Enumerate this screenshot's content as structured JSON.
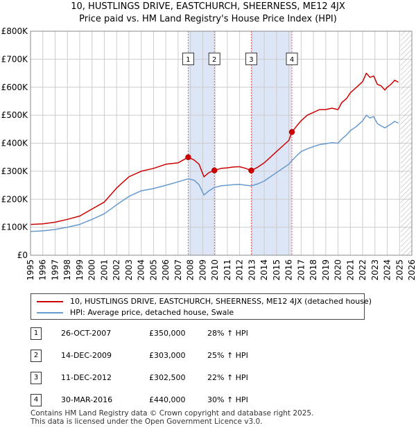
{
  "title": {
    "line1": "10, HUSTLINGS DRIVE, EASTCHURCH, SHEERNESS, ME12 4JX",
    "line2": "Price paid vs. HM Land Registry's House Price Index (HPI)"
  },
  "legend": {
    "property_label": "10, HUSTLINGS DRIVE, EASTCHURCH, SHEERNESS, ME12 4JX (detached house)",
    "hpi_label": "HPI: Average price, detached house, Swale"
  },
  "colors": {
    "property": "#cc0000",
    "hpi": "#6699cc",
    "shade": "#dde6f7",
    "grid": "#cccccc",
    "marker_line": "#e06060"
  },
  "sales": [
    {
      "num": "1",
      "date": "26-OCT-2007",
      "price": "£350,000",
      "hpi": "28% ↑ HPI"
    },
    {
      "num": "2",
      "date": "14-DEC-2009",
      "price": "£303,000",
      "hpi": "25% ↑ HPI"
    },
    {
      "num": "3",
      "date": "11-DEC-2012",
      "price": "£302,500",
      "hpi": "22% ↑ HPI"
    },
    {
      "num": "4",
      "date": "30-MAR-2016",
      "price": "£440,000",
      "hpi": "30% ↑ HPI"
    }
  ],
  "footer": {
    "line1": "Contains HM Land Registry data © Crown copyright and database right 2025.",
    "line2": "This data is licensed under the Open Government Licence v3.0."
  },
  "chart_data": {
    "type": "line",
    "title": "Price paid vs. HM Land Registry's House Price Index (HPI)",
    "xlabel": "",
    "ylabel": "",
    "xlim": [
      1995,
      2026
    ],
    "ylim": [
      0,
      800000
    ],
    "x_ticks": [
      "1995",
      "1996",
      "1997",
      "1998",
      "1999",
      "2000",
      "2001",
      "2002",
      "2003",
      "2004",
      "2005",
      "2006",
      "2007",
      "2008",
      "2009",
      "2010",
      "2011",
      "2012",
      "2013",
      "2014",
      "2015",
      "2016",
      "2017",
      "2018",
      "2019",
      "2020",
      "2021",
      "2022",
      "2023",
      "2024",
      "2025",
      "2026"
    ],
    "y_ticks": [
      {
        "value": 0,
        "label": "£0"
      },
      {
        "value": 100000,
        "label": "£100K"
      },
      {
        "value": 200000,
        "label": "£200K"
      },
      {
        "value": 300000,
        "label": "£300K"
      },
      {
        "value": 400000,
        "label": "£400K"
      },
      {
        "value": 500000,
        "label": "£500K"
      },
      {
        "value": 600000,
        "label": "£600K"
      },
      {
        "value": 700000,
        "label": "£700K"
      },
      {
        "value": 800000,
        "label": "£800K"
      }
    ],
    "shaded_periods": [
      [
        2007.82,
        2009.95
      ],
      [
        2012.95,
        2016.25
      ]
    ],
    "hatched_from": 2025.1,
    "sale_markers": [
      {
        "label": "1",
        "x": 2007.82,
        "y": 350000
      },
      {
        "label": "2",
        "x": 2009.95,
        "y": 303000
      },
      {
        "label": "3",
        "x": 2012.95,
        "y": 302500
      },
      {
        "label": "4",
        "x": 2016.25,
        "y": 440000
      }
    ],
    "series": [
      {
        "name": "10, HUSTLINGS DRIVE, EASTCHURCH, SHEERNESS, ME12 4JX (detached house)",
        "color": "#cc0000",
        "x": [
          1995.0,
          1996.0,
          1997.0,
          1998.0,
          1999.0,
          2000.0,
          2001.0,
          2002.0,
          2003.0,
          2004.0,
          2005.0,
          2006.0,
          2007.0,
          2007.82,
          2008.3,
          2008.7,
          2009.1,
          2009.5,
          2009.95,
          2010.5,
          2011.0,
          2011.5,
          2012.0,
          2012.5,
          2012.95,
          2013.5,
          2014.0,
          2014.5,
          2015.0,
          2015.5,
          2016.0,
          2016.25,
          2016.7,
          2017.0,
          2017.5,
          2018.0,
          2018.5,
          2019.0,
          2019.5,
          2020.0,
          2020.3,
          2020.7,
          2021.0,
          2021.5,
          2022.0,
          2022.3,
          2022.6,
          2022.9,
          2023.2,
          2023.5,
          2023.8,
          2024.0,
          2024.3,
          2024.6,
          2024.9
        ],
        "y": [
          110000,
          112000,
          118000,
          128000,
          140000,
          165000,
          190000,
          240000,
          280000,
          300000,
          310000,
          325000,
          330000,
          350000,
          340000,
          325000,
          280000,
          295000,
          303000,
          310000,
          312000,
          315000,
          316000,
          310000,
          302500,
          315000,
          330000,
          350000,
          370000,
          390000,
          410000,
          440000,
          465000,
          480000,
          500000,
          510000,
          520000,
          520000,
          525000,
          520000,
          545000,
          560000,
          580000,
          600000,
          620000,
          650000,
          635000,
          640000,
          610000,
          605000,
          590000,
          600000,
          610000,
          625000,
          618000
        ]
      },
      {
        "name": "HPI: Average price, detached house, Swale",
        "color": "#6699cc",
        "x": [
          1995.0,
          1996.0,
          1997.0,
          1998.0,
          1999.0,
          2000.0,
          2001.0,
          2002.0,
          2003.0,
          2004.0,
          2005.0,
          2006.0,
          2007.0,
          2007.82,
          2008.3,
          2008.7,
          2009.1,
          2009.5,
          2009.95,
          2010.5,
          2011.0,
          2011.5,
          2012.0,
          2012.5,
          2012.95,
          2013.5,
          2014.0,
          2014.5,
          2015.0,
          2015.5,
          2016.0,
          2016.25,
          2016.7,
          2017.0,
          2017.5,
          2018.0,
          2018.5,
          2019.0,
          2019.5,
          2020.0,
          2020.3,
          2020.7,
          2021.0,
          2021.5,
          2022.0,
          2022.3,
          2022.6,
          2022.9,
          2023.2,
          2023.5,
          2023.8,
          2024.0,
          2024.3,
          2024.6,
          2024.9
        ],
        "y": [
          85000,
          87000,
          92000,
          100000,
          110000,
          128000,
          148000,
          180000,
          210000,
          230000,
          238000,
          250000,
          262000,
          273000,
          268000,
          252000,
          215000,
          230000,
          242000,
          248000,
          250000,
          252000,
          253000,
          250000,
          248000,
          255000,
          265000,
          280000,
          295000,
          310000,
          325000,
          338000,
          358000,
          370000,
          380000,
          388000,
          395000,
          398000,
          402000,
          400000,
          415000,
          430000,
          445000,
          460000,
          480000,
          500000,
          490000,
          495000,
          470000,
          462000,
          455000,
          460000,
          468000,
          478000,
          472000
        ]
      }
    ]
  }
}
